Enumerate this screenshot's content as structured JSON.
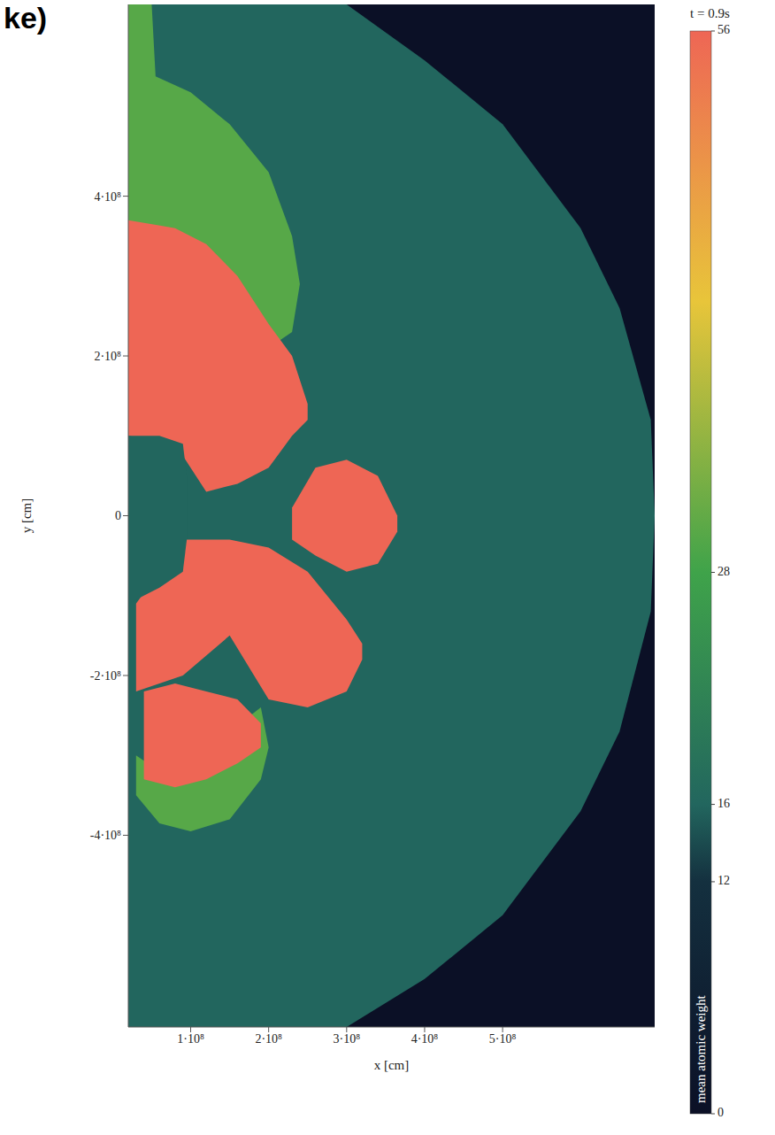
{
  "chart_data": {
    "type": "area",
    "title": "ke)",
    "annotation": "t = 0.9s",
    "xlabel": "x [cm]",
    "ylabel": "y [cm]",
    "xlim": [
      20000000.0,
      695000000.0
    ],
    "ylim": [
      -640000000.0,
      640000000.0
    ],
    "xticks": [
      {
        "value": 100000000.0,
        "label": "1·10⁸"
      },
      {
        "value": 200000000.0,
        "label": "2·10⁸"
      },
      {
        "value": 300000000.0,
        "label": "3·10⁸"
      },
      {
        "value": 400000000.0,
        "label": "4·10⁸"
      },
      {
        "value": 500000000.0,
        "label": "5·10⁸"
      }
    ],
    "yticks": [
      {
        "value": -400000000.0,
        "label": "-4·10⁸"
      },
      {
        "value": -200000000.0,
        "label": "-2·10⁸"
      },
      0,
      {
        "value": 200000000.0,
        "label": "2·10⁸"
      },
      {
        "value": 400000000.0,
        "label": "4·10⁸"
      }
    ],
    "grid": false,
    "colorbar": {
      "label": "mean atomic weight",
      "range": [
        0,
        56
      ],
      "ticks": [
        0,
        12,
        16,
        28,
        56
      ],
      "colorscale": [
        {
          "value": 0,
          "color": "#0b1026"
        },
        {
          "value": 12,
          "color": "#14303f"
        },
        {
          "value": 16,
          "color": "#22665e"
        },
        {
          "value": 28,
          "color": "#3fa34a"
        },
        {
          "value": 42,
          "color": "#e8c53a"
        },
        {
          "value": 56,
          "color": "#ee6655"
        }
      ]
    },
    "regions": [
      {
        "value": 0,
        "x": [
          20000000.0,
          695000000.0
        ],
        "low": [
          -640000000.0,
          -640000000.0
        ],
        "high": [
          640000000.0,
          640000000.0
        ]
      },
      {
        "value": 16,
        "x": [
          20000000.0,
          300000000.0,
          400000000.0,
          500000000.0,
          600000000.0,
          650000000.0,
          690000000.0,
          695000000.0
        ],
        "low": [
          -640000000.0,
          -640000000.0,
          -580000000.0,
          -500000000.0,
          -370000000.0,
          -270000000.0,
          -120000000.0,
          0
        ],
        "high": [
          640000000.0,
          640000000.0,
          570000000.0,
          490000000.0,
          360000000.0,
          260000000.0,
          120000000.0,
          0
        ]
      },
      {
        "value": 30,
        "x": [
          20000000.0,
          50000000.0,
          55000000.0,
          100000000.0,
          150000000.0,
          200000000.0,
          230000000.0,
          240000000.0
        ],
        "low": [
          250000000.0,
          230000000.0,
          220000000.0,
          200000000.0,
          200000000.0,
          210000000.0,
          230000000.0,
          290000000.0
        ],
        "high": [
          640000000.0,
          640000000.0,
          550000000.0,
          530000000.0,
          490000000.0,
          430000000.0,
          350000000.0,
          290000000.0
        ]
      },
      {
        "value": 30,
        "x": [
          30000000.0,
          60000000.0,
          100000000.0,
          150000000.0,
          190000000.0,
          200000000.0
        ],
        "low": [
          -350000000.0,
          -385000000.0,
          -395000000.0,
          -380000000.0,
          -330000000.0,
          -290000000.0
        ],
        "high": [
          -300000000.0,
          -320000000.0,
          -320000000.0,
          -270000000.0,
          -240000000.0,
          -290000000.0
        ]
      },
      {
        "value": 56,
        "x": [
          20000000.0,
          80000000.0,
          120000000.0,
          160000000.0,
          200000000.0,
          230000000.0,
          250000000.0
        ],
        "low": [
          100000000.0,
          90000000.0,
          30000000.0,
          40000000.0,
          60000000.0,
          100000000.0,
          120000000.0
        ],
        "high": [
          370000000.0,
          360000000.0,
          340000000.0,
          300000000.0,
          240000000.0,
          200000000.0,
          140000000.0
        ]
      },
      {
        "value": 56,
        "x": [
          230000000.0,
          260000000.0,
          300000000.0,
          340000000.0,
          365000000.0
        ],
        "low": [
          -30000000.0,
          -50000000.0,
          -70000000.0,
          -60000000.0,
          -20000000.0
        ],
        "high": [
          10000000.0,
          60000000.0,
          70000000.0,
          50000000.0,
          0
        ]
      },
      {
        "value": 56,
        "x": [
          30000000.0,
          90000000.0,
          150000000.0,
          200000000.0,
          250000000.0,
          300000000.0,
          320000000.0
        ],
        "low": [
          -220000000.0,
          -200000000.0,
          -150000000.0,
          -230000000.0,
          -240000000.0,
          -220000000.0,
          -180000000.0
        ],
        "high": [
          -110000000.0,
          -30000000.0,
          -30000000.0,
          -40000000.0,
          -70000000.0,
          -130000000.0,
          -160000000.0
        ]
      },
      {
        "value": 56,
        "x": [
          40000000.0,
          80000000.0,
          120000000.0,
          160000000.0,
          190000000.0
        ],
        "low": [
          -330000000.0,
          -340000000.0,
          -330000000.0,
          -310000000.0,
          -290000000.0
        ],
        "high": [
          -220000000.0,
          -210000000.0,
          -220000000.0,
          -230000000.0,
          -260000000.0
        ]
      },
      {
        "value": 16,
        "x": [
          20000000.0,
          60000000.0,
          90000000.0,
          95000000.0
        ],
        "low": [
          -110000000.0,
          -90000000.0,
          -70000000.0,
          -30000000.0
        ],
        "high": [
          100000000.0,
          100000000.0,
          90000000.0,
          50000000.0
        ]
      }
    ]
  }
}
